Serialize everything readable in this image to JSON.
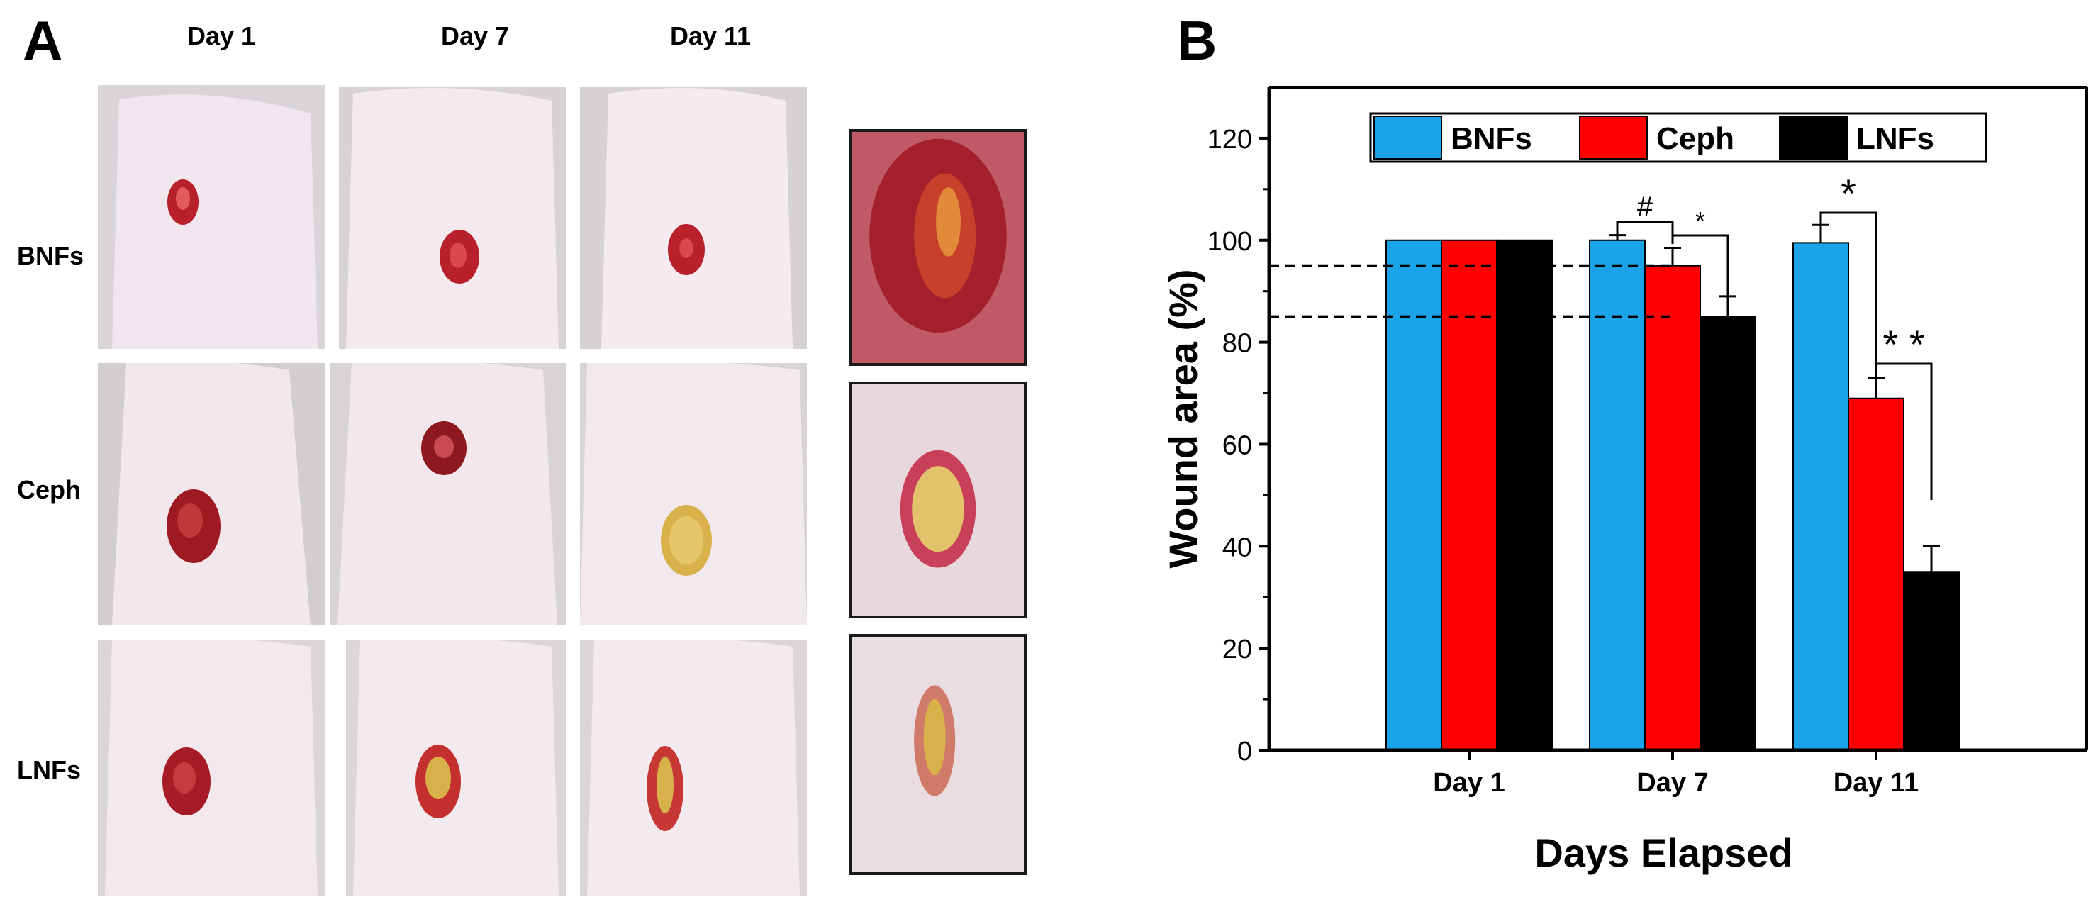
{
  "panel_a": {
    "label": "A",
    "columns": [
      "Day 1",
      "Day 7",
      "Day 11"
    ],
    "rows": [
      "BNFs",
      "Ceph",
      "LNFs"
    ]
  },
  "panel_b": {
    "label": "B"
  },
  "colors": {
    "BNFs": "#1aa3e8",
    "Ceph": "#ff0000",
    "LNFs": "#000000",
    "skin": "#efe4ec",
    "wound": "#b8202c",
    "healing": "#d8b14a"
  },
  "chart_data": {
    "type": "bar",
    "title": "",
    "xlabel": "Days Elapsed",
    "ylabel": "Wound area (%)",
    "ylim": [
      0,
      130
    ],
    "yticks": [
      "0",
      "20",
      "40",
      "60",
      "80",
      "100",
      "120"
    ],
    "categories": [
      "Day 1",
      "Day 7",
      "Day 11"
    ],
    "series": [
      {
        "name": "BNFs",
        "color": "#1aa3e8",
        "values": [
          100,
          100,
          99.5
        ],
        "errors": [
          0,
          1,
          3.5
        ]
      },
      {
        "name": "Ceph",
        "color": "#ff0000",
        "values": [
          100,
          95,
          69
        ],
        "errors": [
          0,
          3.5,
          4
        ]
      },
      {
        "name": "LNFs",
        "color": "#000000",
        "values": [
          100,
          85,
          35
        ],
        "errors": [
          0,
          4,
          5
        ]
      }
    ],
    "reference_lines": [
      95,
      85
    ],
    "legend_position": "top",
    "significance": [
      {
        "category": "Day 7",
        "between": [
          "BNFs",
          "Ceph"
        ],
        "mark": "#"
      },
      {
        "category": "Day 7",
        "between": [
          "Ceph",
          "LNFs"
        ],
        "mark": "*"
      },
      {
        "category": "Day 11",
        "between": [
          "BNFs",
          "Ceph"
        ],
        "mark": "*"
      },
      {
        "category": "Day 11",
        "between": [
          "Ceph",
          "LNFs"
        ],
        "mark": "* *"
      }
    ]
  }
}
